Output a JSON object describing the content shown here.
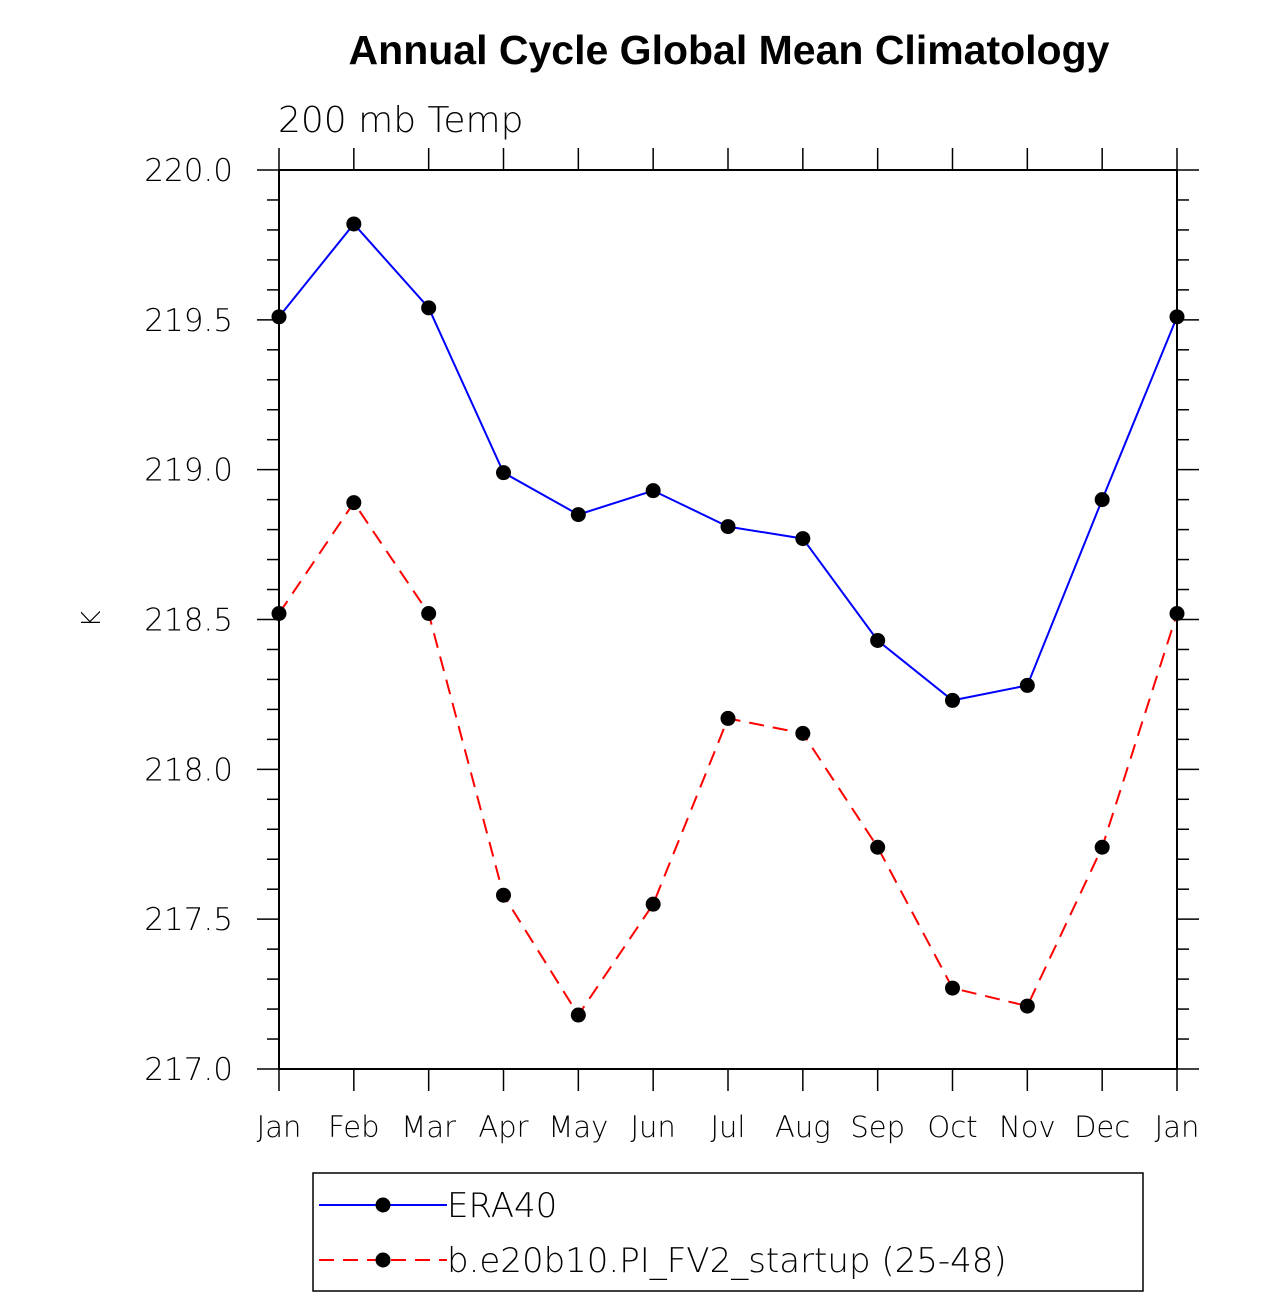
{
  "chart_data": {
    "type": "line",
    "title": "Annual Cycle Global Mean Climatology",
    "subtitle": "200 mb Temp",
    "xlabel": "",
    "ylabel": "K",
    "categories": [
      "Jan",
      "Feb",
      "Mar",
      "Apr",
      "May",
      "Jun",
      "Jul",
      "Aug",
      "Sep",
      "Oct",
      "Nov",
      "Dec",
      "Jan"
    ],
    "ylim": [
      217.0,
      220.0
    ],
    "yticks": [
      "217.0",
      "217.5",
      "218.0",
      "218.5",
      "219.0",
      "219.5",
      "220.0"
    ],
    "grid": false,
    "legend_position": "bottom",
    "series": [
      {
        "name": "ERA40",
        "color": "#0000ff",
        "line_style": "solid",
        "marker": "filled-circle",
        "values": [
          219.51,
          219.82,
          219.54,
          218.99,
          218.85,
          218.93,
          218.81,
          218.77,
          218.43,
          218.23,
          218.28,
          218.9,
          219.51
        ]
      },
      {
        "name": "b.e20b10.PI_FV2_startup (25-48)",
        "color": "#ff0000",
        "line_style": "dashed",
        "marker": "filled-circle",
        "values": [
          218.52,
          218.89,
          218.52,
          217.58,
          217.18,
          217.55,
          218.17,
          218.12,
          217.74,
          217.27,
          217.21,
          217.74,
          218.52
        ]
      }
    ]
  }
}
